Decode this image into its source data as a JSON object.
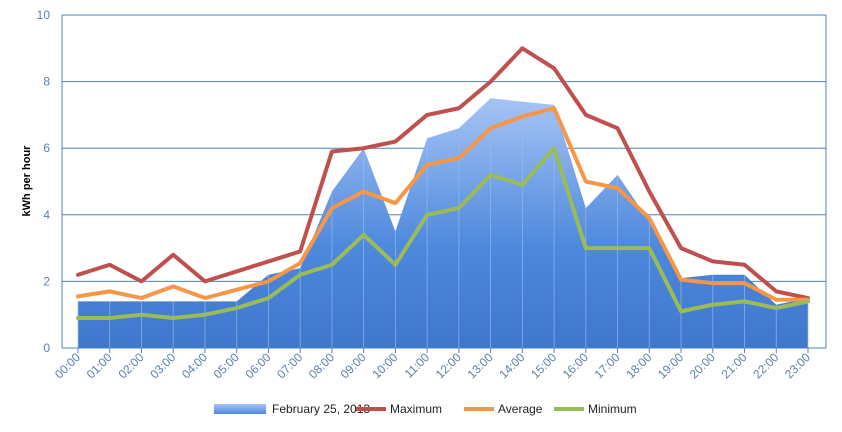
{
  "chart_data": {
    "type": "area",
    "ylabel": "kWh per hour",
    "ylim": [
      0,
      10
    ],
    "yticks": [
      0,
      2,
      4,
      6,
      8,
      10
    ],
    "grid": true,
    "legend_position": "bottom",
    "categories": [
      "00:00",
      "01:00",
      "02:00",
      "03:00",
      "04:00",
      "05:00",
      "06:00",
      "07:00",
      "08:00",
      "09:00",
      "10:00",
      "11:00",
      "12:00",
      "13:00",
      "14:00",
      "15:00",
      "16:00",
      "17:00",
      "18:00",
      "19:00",
      "20:00",
      "21:00",
      "22:00",
      "23:00"
    ],
    "series": [
      {
        "name": "February 25, 2013",
        "kind": "area",
        "color": "#4a86d4",
        "values": [
          1.4,
          1.4,
          1.4,
          1.4,
          1.4,
          1.4,
          2.2,
          2.4,
          4.7,
          6.0,
          3.5,
          6.3,
          6.6,
          7.5,
          7.4,
          7.3,
          4.2,
          5.2,
          3.8,
          2.1,
          2.2,
          2.2,
          1.3,
          1.5
        ]
      },
      {
        "name": "Maximum",
        "kind": "line",
        "color": "#c0504d",
        "values": [
          2.2,
          2.5,
          2.0,
          2.8,
          2.0,
          2.3,
          2.6,
          2.9,
          5.9,
          6.0,
          6.2,
          7.0,
          7.2,
          8.0,
          9.0,
          8.4,
          7.0,
          6.6,
          4.7,
          3.0,
          2.6,
          2.5,
          1.7,
          1.5
        ]
      },
      {
        "name": "Average",
        "kind": "line",
        "color": "#f79646",
        "values": [
          1.55,
          1.7,
          1.5,
          1.85,
          1.5,
          1.75,
          2.0,
          2.55,
          4.2,
          4.7,
          4.35,
          5.5,
          5.7,
          6.6,
          6.95,
          7.2,
          5.0,
          4.8,
          3.9,
          2.05,
          1.95,
          1.95,
          1.45,
          1.45
        ]
      },
      {
        "name": "Minimum",
        "kind": "line",
        "color": "#9bbb59",
        "values": [
          0.9,
          0.9,
          1.0,
          0.9,
          1.0,
          1.2,
          1.5,
          2.2,
          2.5,
          3.4,
          2.5,
          4.0,
          4.2,
          5.2,
          4.9,
          6.0,
          3.0,
          3.0,
          3.0,
          1.1,
          1.3,
          1.4,
          1.2,
          1.4
        ]
      }
    ]
  }
}
